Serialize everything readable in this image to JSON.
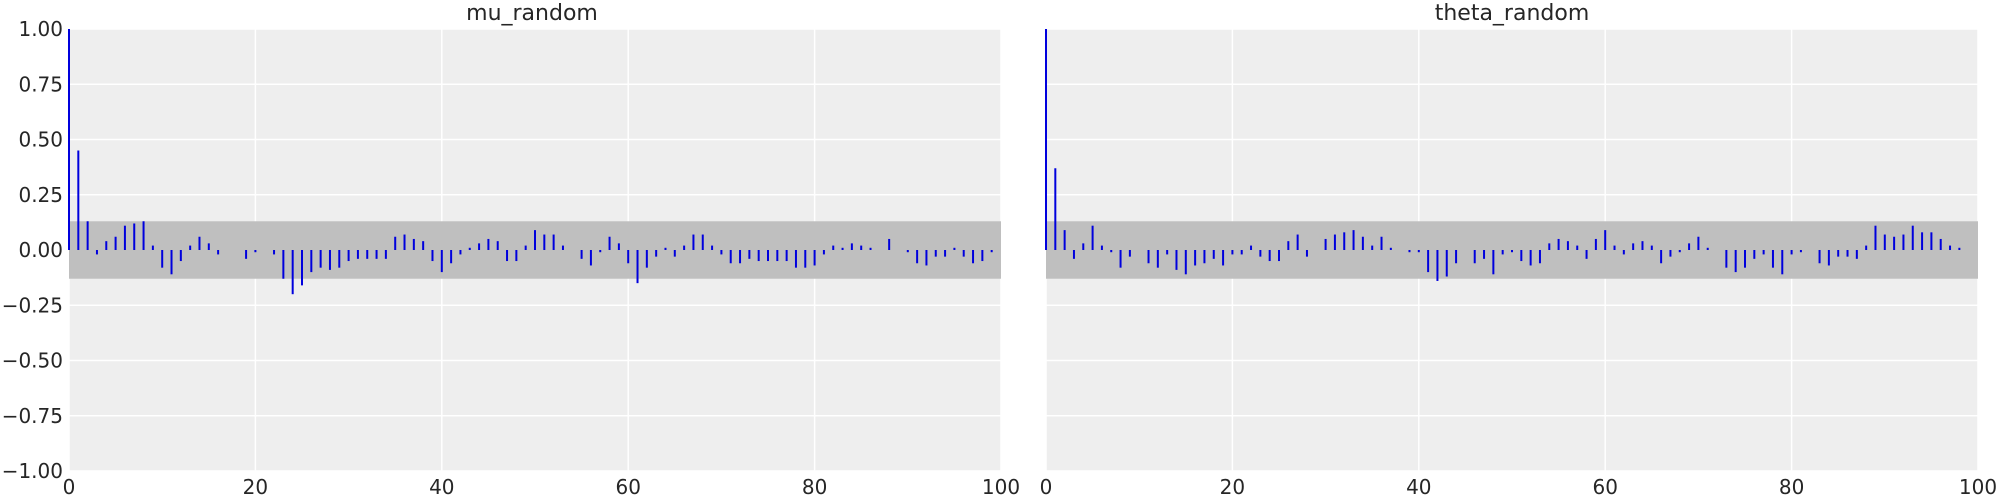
{
  "colors": {
    "background": "#eeeeee",
    "grid": "#ffffff",
    "band": "#bfbfbf",
    "stem": "#0000dd"
  },
  "chart_data": [
    {
      "type": "bar",
      "style": "autocorrelation-stem",
      "title": "mu_random",
      "xlabel": "",
      "ylabel": "",
      "xlim": [
        0,
        100
      ],
      "ylim": [
        -1.0,
        1.0
      ],
      "xticks": [
        0,
        20,
        40,
        60,
        80,
        100
      ],
      "yticks": [
        -1.0,
        -0.75,
        -0.5,
        -0.25,
        0.0,
        0.25,
        0.5,
        0.75,
        1.0
      ],
      "xtick_labels": [
        "0",
        "20",
        "40",
        "60",
        "80",
        "100"
      ],
      "ytick_labels": [
        "−1.00",
        "−0.75",
        "−0.50",
        "−0.25",
        "0.00",
        "0.25",
        "0.50",
        "0.75",
        "1.00"
      ],
      "grid": true,
      "confidence_band": [
        -0.13,
        0.13
      ],
      "lags": [
        0,
        1,
        2,
        3,
        4,
        5,
        6,
        7,
        8,
        9,
        10,
        11,
        12,
        13,
        14,
        15,
        16,
        17,
        18,
        19,
        20,
        21,
        22,
        23,
        24,
        25,
        26,
        27,
        28,
        29,
        30,
        31,
        32,
        33,
        34,
        35,
        36,
        37,
        38,
        39,
        40,
        41,
        42,
        43,
        44,
        45,
        46,
        47,
        48,
        49,
        50,
        51,
        52,
        53,
        54,
        55,
        56,
        57,
        58,
        59,
        60,
        61,
        62,
        63,
        64,
        65,
        66,
        67,
        68,
        69,
        70,
        71,
        72,
        73,
        74,
        75,
        76,
        77,
        78,
        79,
        80,
        81,
        82,
        83,
        84,
        85,
        86,
        87,
        88,
        89,
        90,
        91,
        92,
        93,
        94,
        95,
        96,
        97,
        98,
        99
      ],
      "values": [
        1.0,
        0.45,
        0.13,
        -0.02,
        0.04,
        0.06,
        0.11,
        0.12,
        0.13,
        0.02,
        -0.08,
        -0.11,
        -0.05,
        0.02,
        0.06,
        0.03,
        -0.02,
        0.0,
        0.0,
        -0.04,
        -0.01,
        0.0,
        -0.02,
        -0.13,
        -0.2,
        -0.16,
        -0.1,
        -0.08,
        -0.09,
        -0.08,
        -0.05,
        -0.04,
        -0.04,
        -0.04,
        -0.04,
        0.06,
        0.07,
        0.05,
        0.04,
        -0.05,
        -0.1,
        -0.06,
        -0.02,
        0.01,
        0.03,
        0.05,
        0.04,
        -0.05,
        -0.05,
        0.02,
        0.09,
        0.07,
        0.07,
        0.02,
        0.0,
        -0.04,
        -0.07,
        -0.01,
        0.06,
        0.03,
        -0.06,
        -0.15,
        -0.08,
        -0.03,
        0.01,
        -0.03,
        0.02,
        0.07,
        0.07,
        0.02,
        -0.02,
        -0.06,
        -0.06,
        -0.04,
        -0.05,
        -0.05,
        -0.05,
        -0.05,
        -0.08,
        -0.08,
        -0.07,
        -0.02,
        0.02,
        0.01,
        0.03,
        0.02,
        0.01,
        0.0,
        0.05,
        0.0,
        -0.01,
        -0.06,
        -0.07,
        -0.03,
        -0.03,
        0.01,
        -0.03,
        -0.06,
        -0.05,
        -0.01
      ]
    },
    {
      "type": "bar",
      "style": "autocorrelation-stem",
      "title": "theta_random",
      "xlabel": "",
      "ylabel": "",
      "xlim": [
        0,
        100
      ],
      "ylim": [
        -1.0,
        1.0
      ],
      "xticks": [
        0,
        20,
        40,
        60,
        80,
        100
      ],
      "xtick_labels": [
        "0",
        "20",
        "40",
        "60",
        "80",
        "100"
      ],
      "grid": true,
      "confidence_band": [
        -0.13,
        0.13
      ],
      "lags": [
        0,
        1,
        2,
        3,
        4,
        5,
        6,
        7,
        8,
        9,
        10,
        11,
        12,
        13,
        14,
        15,
        16,
        17,
        18,
        19,
        20,
        21,
        22,
        23,
        24,
        25,
        26,
        27,
        28,
        29,
        30,
        31,
        32,
        33,
        34,
        35,
        36,
        37,
        38,
        39,
        40,
        41,
        42,
        43,
        44,
        45,
        46,
        47,
        48,
        49,
        50,
        51,
        52,
        53,
        54,
        55,
        56,
        57,
        58,
        59,
        60,
        61,
        62,
        63,
        64,
        65,
        66,
        67,
        68,
        69,
        70,
        71,
        72,
        73,
        74,
        75,
        76,
        77,
        78,
        79,
        80,
        81,
        82,
        83,
        84,
        85,
        86,
        87,
        88,
        89,
        90,
        91,
        92,
        93,
        94,
        95,
        96,
        97,
        98,
        99
      ],
      "values": [
        1.0,
        0.37,
        0.09,
        -0.04,
        0.03,
        0.11,
        0.02,
        -0.01,
        -0.08,
        -0.03,
        0.0,
        -0.06,
        -0.08,
        -0.02,
        -0.09,
        -0.11,
        -0.07,
        -0.06,
        -0.04,
        -0.07,
        -0.02,
        -0.02,
        0.02,
        -0.03,
        -0.05,
        -0.05,
        0.04,
        0.07,
        -0.03,
        0.0,
        0.05,
        0.07,
        0.08,
        0.09,
        0.06,
        0.02,
        0.06,
        0.01,
        0.0,
        -0.01,
        -0.01,
        -0.1,
        -0.14,
        -0.12,
        -0.06,
        0.0,
        -0.06,
        -0.04,
        -0.11,
        -0.02,
        -0.01,
        -0.05,
        -0.07,
        -0.06,
        0.03,
        0.05,
        0.04,
        0.02,
        -0.04,
        0.05,
        0.09,
        0.02,
        -0.02,
        0.03,
        0.04,
        0.02,
        -0.06,
        -0.03,
        -0.01,
        0.03,
        0.06,
        0.01,
        0.0,
        -0.08,
        -0.1,
        -0.08,
        -0.04,
        -0.02,
        -0.08,
        -0.11,
        -0.02,
        -0.01,
        0.0,
        -0.06,
        -0.07,
        -0.03,
        -0.03,
        -0.04,
        0.02,
        0.11,
        0.07,
        0.06,
        0.07,
        0.11,
        0.08,
        0.08,
        0.05,
        0.02,
        0.01,
        0.0
      ]
    }
  ]
}
